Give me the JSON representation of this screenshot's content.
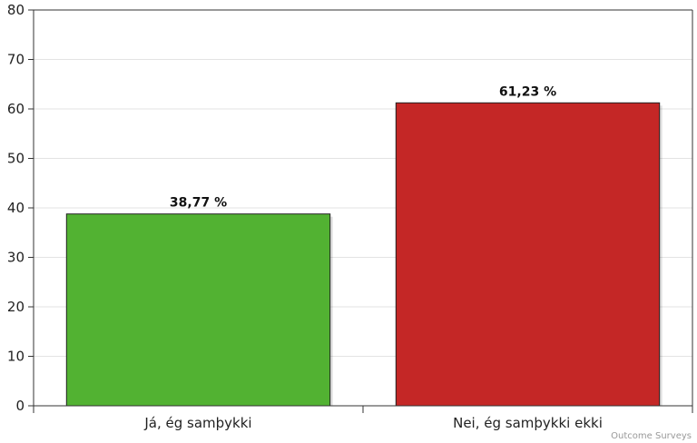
{
  "chart_data": {
    "type": "bar",
    "categories": [
      "Já, ég samþykki",
      "Nei, ég samþykki ekki"
    ],
    "values": [
      38.77,
      61.23
    ],
    "data_labels": [
      "38,77 %",
      "61,23 %"
    ],
    "colors": [
      "#52b232",
      "#c42726"
    ],
    "title": "",
    "xlabel": "",
    "ylabel": "",
    "ylim": [
      0,
      80
    ],
    "yticks": [
      0,
      10,
      20,
      30,
      40,
      50,
      60,
      70,
      80
    ],
    "ytick_labels": [
      "0",
      "10",
      "20",
      "30",
      "40",
      "50",
      "60",
      "70",
      "80"
    ],
    "grid": true,
    "legend": "none"
  },
  "credit": "Outcome Surveys"
}
